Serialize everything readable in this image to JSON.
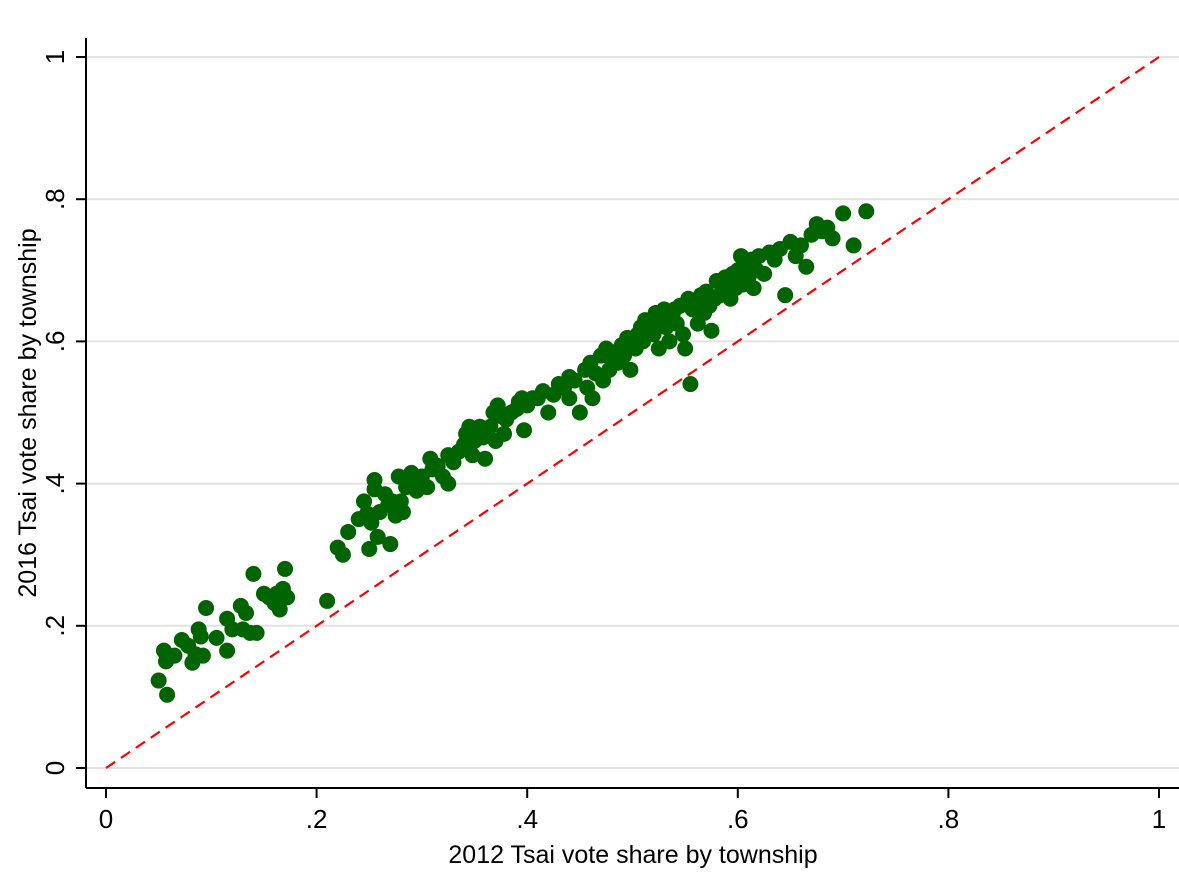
{
  "chart_data": {
    "type": "scatter",
    "title": "",
    "xlabel": "2012 Tsai vote share by township",
    "ylabel": "2016 Tsai vote share by township",
    "xlim": [
      0,
      1
    ],
    "ylim": [
      0,
      1
    ],
    "x_ticks": [
      0,
      0.2,
      0.4,
      0.6,
      0.8,
      1
    ],
    "x_tick_labels": [
      "0",
      ".2",
      ".4",
      ".6",
      ".8",
      "1"
    ],
    "y_ticks": [
      0,
      0.2,
      0.4,
      0.6,
      0.8,
      1
    ],
    "y_tick_labels": [
      "0",
      ".2",
      ".4",
      ".6",
      ".8",
      "1"
    ],
    "grid": "horizontal",
    "legend": "none",
    "marker_color": "#006400",
    "reference_line": {
      "type": "y=x",
      "style": "dashed",
      "color": "#ff0000",
      "from": [
        0,
        0
      ],
      "to": [
        1,
        1
      ]
    },
    "series": [
      {
        "points": [
          [
            0.05,
            0.123
          ],
          [
            0.055,
            0.165
          ],
          [
            0.057,
            0.15
          ],
          [
            0.058,
            0.103
          ],
          [
            0.065,
            0.158
          ],
          [
            0.072,
            0.18
          ],
          [
            0.078,
            0.172
          ],
          [
            0.082,
            0.148
          ],
          [
            0.085,
            0.16
          ],
          [
            0.088,
            0.195
          ],
          [
            0.09,
            0.185
          ],
          [
            0.092,
            0.158
          ],
          [
            0.095,
            0.225
          ],
          [
            0.105,
            0.183
          ],
          [
            0.115,
            0.165
          ],
          [
            0.115,
            0.21
          ],
          [
            0.12,
            0.195
          ],
          [
            0.128,
            0.228
          ],
          [
            0.13,
            0.195
          ],
          [
            0.133,
            0.218
          ],
          [
            0.137,
            0.19
          ],
          [
            0.14,
            0.273
          ],
          [
            0.143,
            0.19
          ],
          [
            0.15,
            0.245
          ],
          [
            0.155,
            0.24
          ],
          [
            0.16,
            0.232
          ],
          [
            0.162,
            0.245
          ],
          [
            0.165,
            0.223
          ],
          [
            0.168,
            0.252
          ],
          [
            0.17,
            0.28
          ],
          [
            0.172,
            0.24
          ],
          [
            0.21,
            0.235
          ],
          [
            0.22,
            0.31
          ],
          [
            0.225,
            0.3
          ],
          [
            0.23,
            0.332
          ],
          [
            0.24,
            0.35
          ],
          [
            0.245,
            0.375
          ],
          [
            0.248,
            0.358
          ],
          [
            0.25,
            0.308
          ],
          [
            0.252,
            0.345
          ],
          [
            0.255,
            0.392
          ],
          [
            0.255,
            0.405
          ],
          [
            0.258,
            0.325
          ],
          [
            0.26,
            0.36
          ],
          [
            0.265,
            0.385
          ],
          [
            0.268,
            0.37
          ],
          [
            0.27,
            0.315
          ],
          [
            0.272,
            0.375
          ],
          [
            0.275,
            0.355
          ],
          [
            0.278,
            0.41
          ],
          [
            0.28,
            0.375
          ],
          [
            0.282,
            0.36
          ],
          [
            0.285,
            0.395
          ],
          [
            0.29,
            0.415
          ],
          [
            0.292,
            0.405
          ],
          [
            0.295,
            0.39
          ],
          [
            0.3,
            0.41
          ],
          [
            0.305,
            0.395
          ],
          [
            0.308,
            0.435
          ],
          [
            0.31,
            0.42
          ],
          [
            0.315,
            0.425
          ],
          [
            0.32,
            0.41
          ],
          [
            0.325,
            0.44
          ],
          [
            0.325,
            0.4
          ],
          [
            0.33,
            0.43
          ],
          [
            0.335,
            0.445
          ],
          [
            0.34,
            0.455
          ],
          [
            0.342,
            0.47
          ],
          [
            0.345,
            0.48
          ],
          [
            0.348,
            0.44
          ],
          [
            0.35,
            0.46
          ],
          [
            0.352,
            0.47
          ],
          [
            0.355,
            0.48
          ],
          [
            0.358,
            0.465
          ],
          [
            0.36,
            0.435
          ],
          [
            0.365,
            0.48
          ],
          [
            0.368,
            0.5
          ],
          [
            0.37,
            0.46
          ],
          [
            0.372,
            0.51
          ],
          [
            0.375,
            0.495
          ],
          [
            0.378,
            0.47
          ],
          [
            0.38,
            0.49
          ],
          [
            0.385,
            0.5
          ],
          [
            0.39,
            0.505
          ],
          [
            0.392,
            0.515
          ],
          [
            0.395,
            0.52
          ],
          [
            0.397,
            0.475
          ],
          [
            0.4,
            0.51
          ],
          [
            0.405,
            0.52
          ],
          [
            0.41,
            0.52
          ],
          [
            0.415,
            0.53
          ],
          [
            0.42,
            0.5
          ],
          [
            0.425,
            0.525
          ],
          [
            0.43,
            0.54
          ],
          [
            0.435,
            0.535
          ],
          [
            0.44,
            0.55
          ],
          [
            0.44,
            0.52
          ],
          [
            0.445,
            0.545
          ],
          [
            0.45,
            0.5
          ],
          [
            0.455,
            0.56
          ],
          [
            0.457,
            0.535
          ],
          [
            0.46,
            0.57
          ],
          [
            0.462,
            0.52
          ],
          [
            0.465,
            0.555
          ],
          [
            0.47,
            0.58
          ],
          [
            0.472,
            0.545
          ],
          [
            0.475,
            0.59
          ],
          [
            0.478,
            0.56
          ],
          [
            0.48,
            0.575
          ],
          [
            0.483,
            0.585
          ],
          [
            0.486,
            0.57
          ],
          [
            0.49,
            0.595
          ],
          [
            0.492,
            0.58
          ],
          [
            0.495,
            0.605
          ],
          [
            0.498,
            0.56
          ],
          [
            0.5,
            0.6
          ],
          [
            0.503,
            0.59
          ],
          [
            0.505,
            0.61
          ],
          [
            0.508,
            0.62
          ],
          [
            0.51,
            0.6
          ],
          [
            0.512,
            0.63
          ],
          [
            0.515,
            0.615
          ],
          [
            0.518,
            0.625
          ],
          [
            0.52,
            0.61
          ],
          [
            0.522,
            0.64
          ],
          [
            0.525,
            0.59
          ],
          [
            0.528,
            0.625
          ],
          [
            0.53,
            0.645
          ],
          [
            0.532,
            0.62
          ],
          [
            0.535,
            0.6
          ],
          [
            0.538,
            0.635
          ],
          [
            0.54,
            0.645
          ],
          [
            0.542,
            0.625
          ],
          [
            0.545,
            0.65
          ],
          [
            0.548,
            0.61
          ],
          [
            0.55,
            0.59
          ],
          [
            0.553,
            0.66
          ],
          [
            0.555,
            0.54
          ],
          [
            0.557,
            0.645
          ],
          [
            0.56,
            0.655
          ],
          [
            0.562,
            0.625
          ],
          [
            0.565,
            0.665
          ],
          [
            0.568,
            0.64
          ],
          [
            0.57,
            0.67
          ],
          [
            0.573,
            0.65
          ],
          [
            0.575,
            0.615
          ],
          [
            0.578,
            0.66
          ],
          [
            0.58,
            0.685
          ],
          [
            0.583,
            0.665
          ],
          [
            0.585,
            0.67
          ],
          [
            0.588,
            0.69
          ],
          [
            0.59,
            0.68
          ],
          [
            0.593,
            0.66
          ],
          [
            0.595,
            0.695
          ],
          [
            0.598,
            0.675
          ],
          [
            0.6,
            0.7
          ],
          [
            0.603,
            0.72
          ],
          [
            0.605,
            0.68
          ],
          [
            0.608,
            0.705
          ],
          [
            0.61,
            0.69
          ],
          [
            0.613,
            0.715
          ],
          [
            0.615,
            0.675
          ],
          [
            0.618,
            0.7
          ],
          [
            0.62,
            0.72
          ],
          [
            0.625,
            0.695
          ],
          [
            0.63,
            0.725
          ],
          [
            0.635,
            0.715
          ],
          [
            0.64,
            0.73
          ],
          [
            0.645,
            0.665
          ],
          [
            0.65,
            0.74
          ],
          [
            0.655,
            0.72
          ],
          [
            0.66,
            0.735
          ],
          [
            0.665,
            0.705
          ],
          [
            0.67,
            0.75
          ],
          [
            0.675,
            0.765
          ],
          [
            0.68,
            0.755
          ],
          [
            0.685,
            0.76
          ],
          [
            0.69,
            0.745
          ],
          [
            0.7,
            0.78
          ],
          [
            0.71,
            0.735
          ],
          [
            0.722,
            0.783
          ]
        ]
      }
    ]
  }
}
